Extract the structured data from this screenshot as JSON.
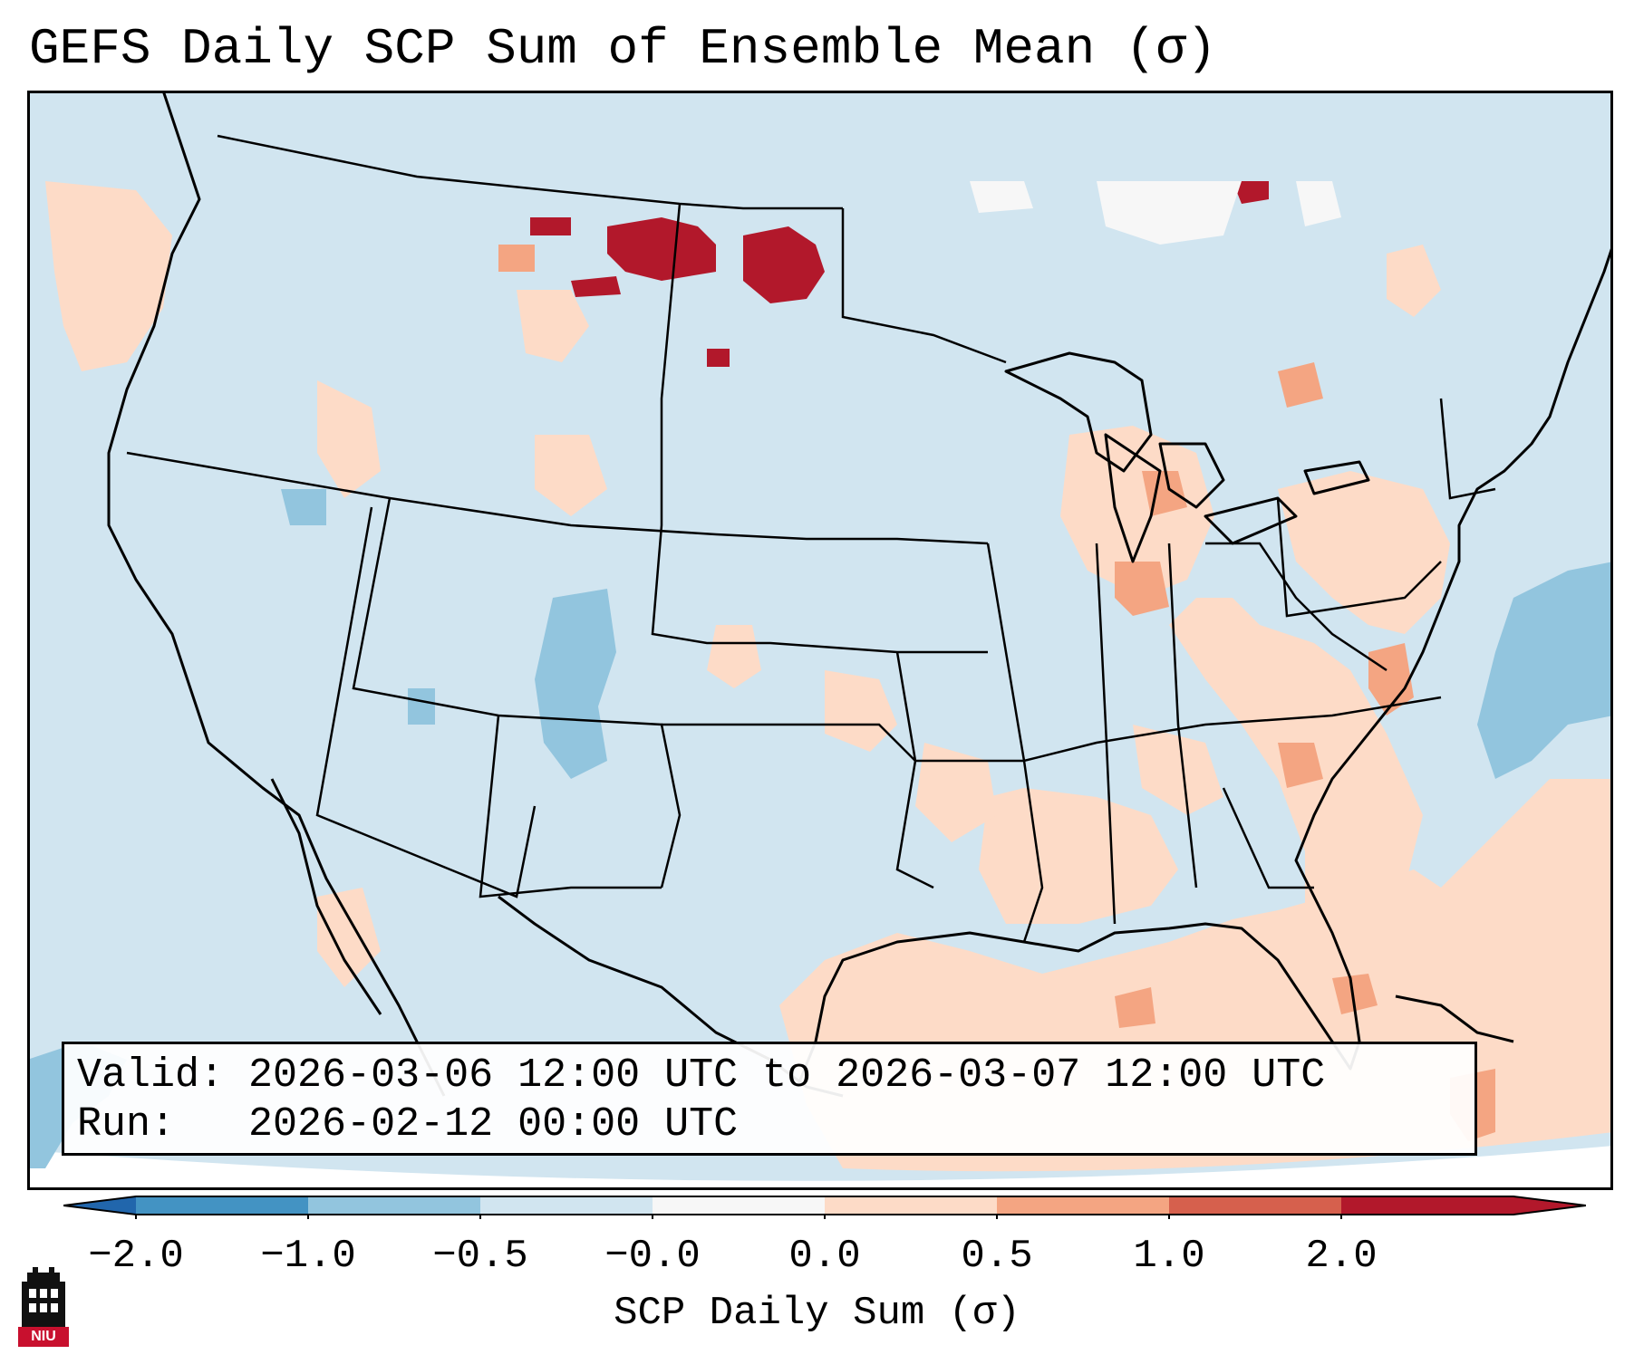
{
  "title": "GEFS Daily SCP Sum of Ensemble Mean (σ)",
  "info": {
    "valid_label": "Valid:",
    "valid_value": "2026-03-06 12:00 UTC to 2026-03-07 12:00 UTC",
    "run_label": "Run:",
    "run_value": "2026-02-12 00:00 UTC"
  },
  "colorbar": {
    "label": "SCP Daily Sum (σ)",
    "ticks": [
      "−2.0",
      "−1.0",
      "−0.5",
      "−0.0",
      "0.0",
      "0.5",
      "1.0",
      "2.0"
    ],
    "colors": [
      "#4393c3",
      "#92c5de",
      "#d1e5f0",
      "#f7f7f7",
      "#fddbc7",
      "#f4a582",
      "#d6604d",
      "#b2182b"
    ],
    "under_color": "#2166ac",
    "over_color": "#b2182b"
  },
  "field": {
    "background": "#d1e5f0",
    "land_line_color": "#000000"
  },
  "logo": {
    "text": "NIU",
    "color": "#c8102e"
  }
}
